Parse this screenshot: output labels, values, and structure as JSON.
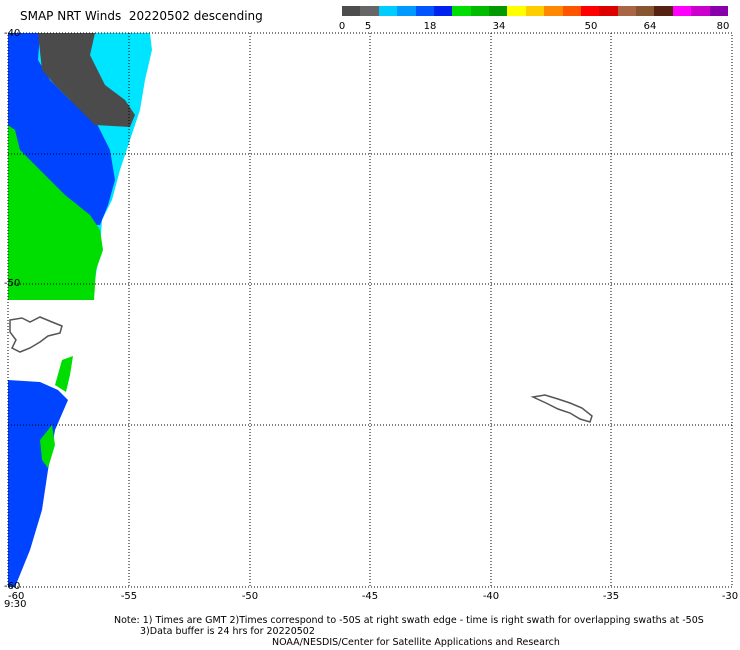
{
  "title": "SMAP NRT Winds  20220502 descending",
  "colorbar": {
    "labels": [
      "0",
      "5",
      "18",
      "34",
      "50",
      "64",
      "80"
    ],
    "segments": [
      "#4d4d4d",
      "#666666",
      "#00ccff",
      "#0099ff",
      "#0055ff",
      "#0022ee",
      "#00dd00",
      "#00bb00",
      "#009900",
      "#ffff00",
      "#ffcc00",
      "#ff8800",
      "#ff5500",
      "#ff0000",
      "#dd0000",
      "#aa6644",
      "#885533",
      "#552211",
      "#ff00ff",
      "#cc00cc",
      "#8800aa"
    ]
  },
  "axes": {
    "x_labels": [
      "-60",
      "-55",
      "-50",
      "-45",
      "-40",
      "-35",
      "-30"
    ],
    "y_labels": [
      "-40",
      "",
      "-50",
      "",
      "-60"
    ],
    "time_label": "9:30"
  },
  "colors": {
    "land": "#555555",
    "calm": "#4b4b4b",
    "cyan": "#00e5ff",
    "blue": "#0044ff",
    "green": "#00dd00"
  },
  "notes": {
    "line1": "Note: 1) Times are GMT 2)Times correspond to -50S at right swath edge - time is right swath for overlapping swaths at -50S",
    "line2": "3)Data buffer is 24 hrs for 20220502",
    "line3": "NOAA/NESDIS/Center for Satellite Applications and Research"
  }
}
